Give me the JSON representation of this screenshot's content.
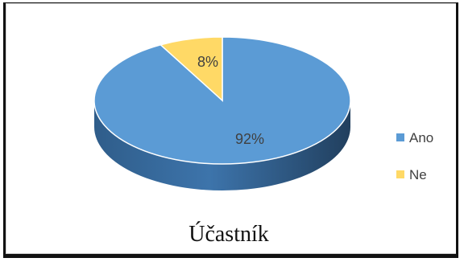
{
  "chart_data": {
    "type": "pie",
    "style": "3d",
    "title": "Účastník",
    "categories": [
      "Ano",
      "Ne"
    ],
    "values": [
      92,
      8
    ],
    "data_labels": [
      "92%",
      "8%"
    ],
    "colors": [
      "#5B9BD5",
      "#FFD966"
    ],
    "legend_position": "right"
  }
}
